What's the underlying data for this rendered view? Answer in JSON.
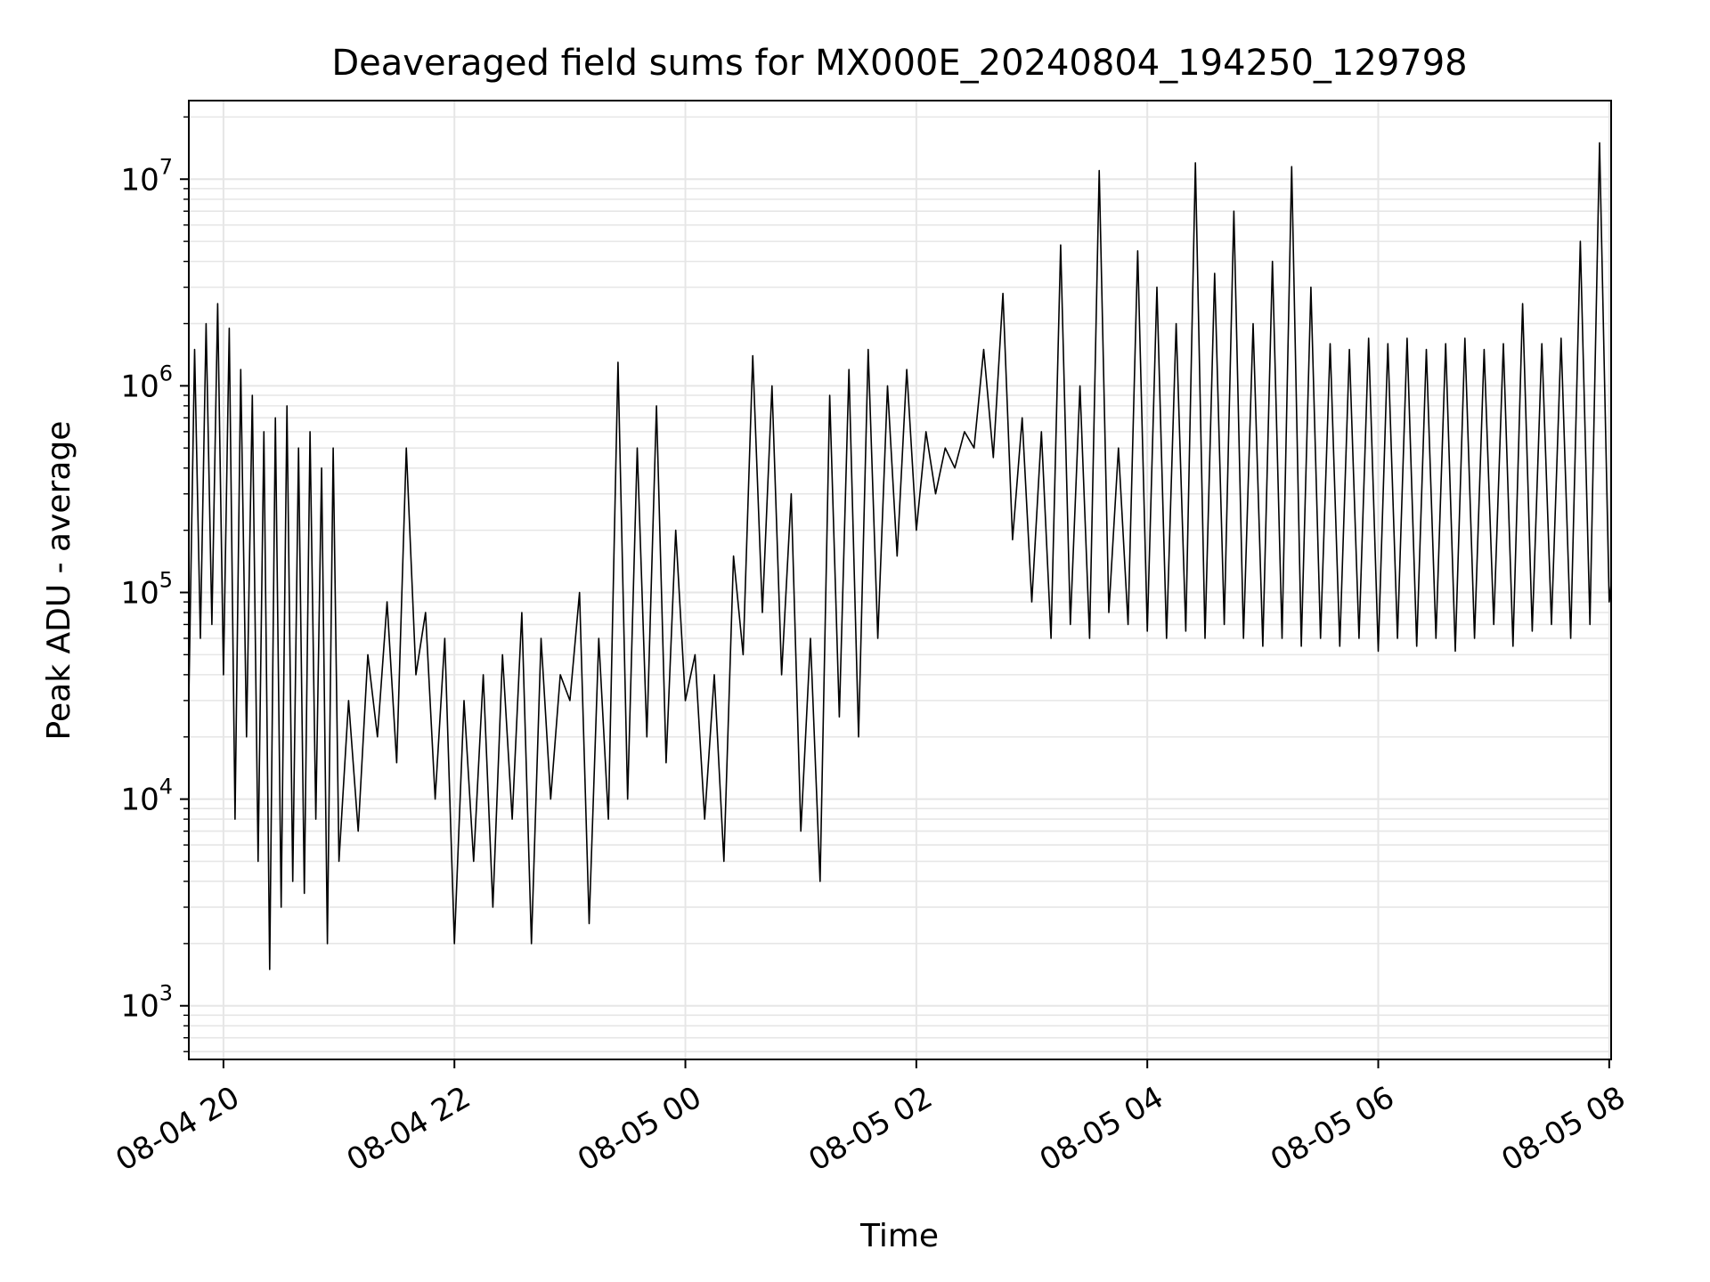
{
  "chart_data": {
    "type": "line",
    "title": "Deaveraged field sums for MX000E_20240804_194250_129798",
    "xlabel": "Time",
    "ylabel": "Peak ADU - average",
    "y_scale": "log",
    "ylim": [
      550,
      24000000
    ],
    "xlim": [
      "2024-08-04 19:42",
      "2024-08-05 08:01"
    ],
    "grid": true,
    "legend": "none",
    "line_color": "#000000",
    "grid_color": "#e6e6e6",
    "x_ticks": [
      {
        "value": "2024-08-04 20:00",
        "label": "08-04 20"
      },
      {
        "value": "2024-08-04 22:00",
        "label": "08-04 22"
      },
      {
        "value": "2024-08-05 00:00",
        "label": "08-05 00"
      },
      {
        "value": "2024-08-05 02:00",
        "label": "08-05 02"
      },
      {
        "value": "2024-08-05 04:00",
        "label": "08-05 04"
      },
      {
        "value": "2024-08-05 06:00",
        "label": "08-05 06"
      },
      {
        "value": "2024-08-05 08:00",
        "label": "08-05 08"
      }
    ],
    "y_ticks": [
      {
        "value": 1000,
        "base": "10",
        "exp": "3"
      },
      {
        "value": 10000,
        "base": "10",
        "exp": "4"
      },
      {
        "value": 100000,
        "base": "10",
        "exp": "5"
      },
      {
        "value": 1000000,
        "base": "10",
        "exp": "6"
      },
      {
        "value": 10000000,
        "base": "10",
        "exp": "7"
      }
    ],
    "series": [
      {
        "x": [
          "2024-08-04 19:42",
          "2024-08-04 19:45",
          "2024-08-04 19:48",
          "2024-08-04 19:51",
          "2024-08-04 19:54",
          "2024-08-04 19:57",
          "2024-08-04 20:00",
          "2024-08-04 20:03",
          "2024-08-04 20:06",
          "2024-08-04 20:09",
          "2024-08-04 20:12",
          "2024-08-04 20:15",
          "2024-08-04 20:18",
          "2024-08-04 20:21",
          "2024-08-04 20:24",
          "2024-08-04 20:27",
          "2024-08-04 20:30",
          "2024-08-04 20:33",
          "2024-08-04 20:36",
          "2024-08-04 20:39",
          "2024-08-04 20:42",
          "2024-08-04 20:45",
          "2024-08-04 20:48",
          "2024-08-04 20:51",
          "2024-08-04 20:54",
          "2024-08-04 20:57",
          "2024-08-04 21:00",
          "2024-08-04 21:05",
          "2024-08-04 21:10",
          "2024-08-04 21:15",
          "2024-08-04 21:20",
          "2024-08-04 21:25",
          "2024-08-04 21:30",
          "2024-08-04 21:35",
          "2024-08-04 21:40",
          "2024-08-04 21:45",
          "2024-08-04 21:50",
          "2024-08-04 21:55",
          "2024-08-04 22:00",
          "2024-08-04 22:05",
          "2024-08-04 22:10",
          "2024-08-04 22:15",
          "2024-08-04 22:20",
          "2024-08-04 22:25",
          "2024-08-04 22:30",
          "2024-08-04 22:35",
          "2024-08-04 22:40",
          "2024-08-04 22:45",
          "2024-08-04 22:50",
          "2024-08-04 22:55",
          "2024-08-04 23:00",
          "2024-08-04 23:05",
          "2024-08-04 23:10",
          "2024-08-04 23:15",
          "2024-08-04 23:20",
          "2024-08-04 23:25",
          "2024-08-04 23:30",
          "2024-08-04 23:35",
          "2024-08-04 23:40",
          "2024-08-04 23:45",
          "2024-08-04 23:50",
          "2024-08-04 23:55",
          "2024-08-05 00:00",
          "2024-08-05 00:05",
          "2024-08-05 00:10",
          "2024-08-05 00:15",
          "2024-08-05 00:20",
          "2024-08-05 00:25",
          "2024-08-05 00:30",
          "2024-08-05 00:35",
          "2024-08-05 00:40",
          "2024-08-05 00:45",
          "2024-08-05 00:50",
          "2024-08-05 00:55",
          "2024-08-05 01:00",
          "2024-08-05 01:05",
          "2024-08-05 01:10",
          "2024-08-05 01:15",
          "2024-08-05 01:20",
          "2024-08-05 01:25",
          "2024-08-05 01:30",
          "2024-08-05 01:35",
          "2024-08-05 01:40",
          "2024-08-05 01:45",
          "2024-08-05 01:50",
          "2024-08-05 01:55",
          "2024-08-05 02:00",
          "2024-08-05 02:05",
          "2024-08-05 02:10",
          "2024-08-05 02:15",
          "2024-08-05 02:20",
          "2024-08-05 02:25",
          "2024-08-05 02:30",
          "2024-08-05 02:35",
          "2024-08-05 02:40",
          "2024-08-05 02:45",
          "2024-08-05 02:50",
          "2024-08-05 02:55",
          "2024-08-05 03:00",
          "2024-08-05 03:05",
          "2024-08-05 03:10",
          "2024-08-05 03:15",
          "2024-08-05 03:20",
          "2024-08-05 03:25",
          "2024-08-05 03:30",
          "2024-08-05 03:35",
          "2024-08-05 03:40",
          "2024-08-05 03:45",
          "2024-08-05 03:50",
          "2024-08-05 03:55",
          "2024-08-05 04:00",
          "2024-08-05 04:05",
          "2024-08-05 04:10",
          "2024-08-05 04:15",
          "2024-08-05 04:20",
          "2024-08-05 04:25",
          "2024-08-05 04:30",
          "2024-08-05 04:35",
          "2024-08-05 04:40",
          "2024-08-05 04:45",
          "2024-08-05 04:50",
          "2024-08-05 04:55",
          "2024-08-05 05:00",
          "2024-08-05 05:05",
          "2024-08-05 05:10",
          "2024-08-05 05:15",
          "2024-08-05 05:20",
          "2024-08-05 05:25",
          "2024-08-05 05:30",
          "2024-08-05 05:35",
          "2024-08-05 05:40",
          "2024-08-05 05:45",
          "2024-08-05 05:50",
          "2024-08-05 05:55",
          "2024-08-05 06:00",
          "2024-08-05 06:05",
          "2024-08-05 06:10",
          "2024-08-05 06:15",
          "2024-08-05 06:20",
          "2024-08-05 06:25",
          "2024-08-05 06:30",
          "2024-08-05 06:35",
          "2024-08-05 06:40",
          "2024-08-05 06:45",
          "2024-08-05 06:50",
          "2024-08-05 06:55",
          "2024-08-05 07:00",
          "2024-08-05 07:05",
          "2024-08-05 07:10",
          "2024-08-05 07:15",
          "2024-08-05 07:20",
          "2024-08-05 07:25",
          "2024-08-05 07:30",
          "2024-08-05 07:35",
          "2024-08-05 07:40",
          "2024-08-05 07:45",
          "2024-08-05 07:50",
          "2024-08-05 07:55",
          "2024-08-05 08:00",
          "2024-08-05 08:01"
        ],
        "values": [
          30000,
          1500000,
          60000,
          2000000,
          70000,
          2500000,
          40000,
          1900000,
          8000,
          1200000,
          20000,
          900000,
          5000,
          600000,
          1500,
          700000,
          3000,
          800000,
          4000,
          500000,
          3500,
          600000,
          8000,
          400000,
          2000,
          500000,
          5000,
          30000,
          7000,
          50000,
          20000,
          90000,
          15000,
          500000,
          40000,
          80000,
          10000,
          60000,
          2000,
          30000,
          5000,
          40000,
          3000,
          50000,
          8000,
          80000,
          2000,
          60000,
          10000,
          40000,
          30000,
          100000,
          2500,
          60000,
          8000,
          1300000,
          10000,
          500000,
          20000,
          800000,
          15000,
          200000,
          30000,
          50000,
          8000,
          40000,
          5000,
          150000,
          50000,
          1400000,
          80000,
          1000000,
          40000,
          300000,
          7000,
          60000,
          4000,
          900000,
          25000,
          1200000,
          20000,
          1500000,
          60000,
          1000000,
          150000,
          1200000,
          200000,
          600000,
          300000,
          500000,
          400000,
          600000,
          500000,
          1500000,
          450000,
          2800000,
          180000,
          700000,
          90000,
          600000,
          60000,
          4800000,
          70000,
          1000000,
          60000,
          11000000,
          80000,
          500000,
          70000,
          4500000,
          65000,
          3000000,
          60000,
          2000000,
          65000,
          12000000,
          60000,
          3500000,
          70000,
          7000000,
          60000,
          2000000,
          55000,
          4000000,
          60000,
          11500000,
          55000,
          3000000,
          60000,
          1600000,
          55000,
          1500000,
          60000,
          1700000,
          52000,
          1600000,
          60000,
          1700000,
          55000,
          1500000,
          60000,
          1600000,
          52000,
          1700000,
          60000,
          1500000,
          70000,
          1600000,
          55000,
          2500000,
          65000,
          1600000,
          70000,
          1700000,
          60000,
          5000000,
          70000,
          15000000,
          90000,
          110000
        ]
      }
    ]
  }
}
